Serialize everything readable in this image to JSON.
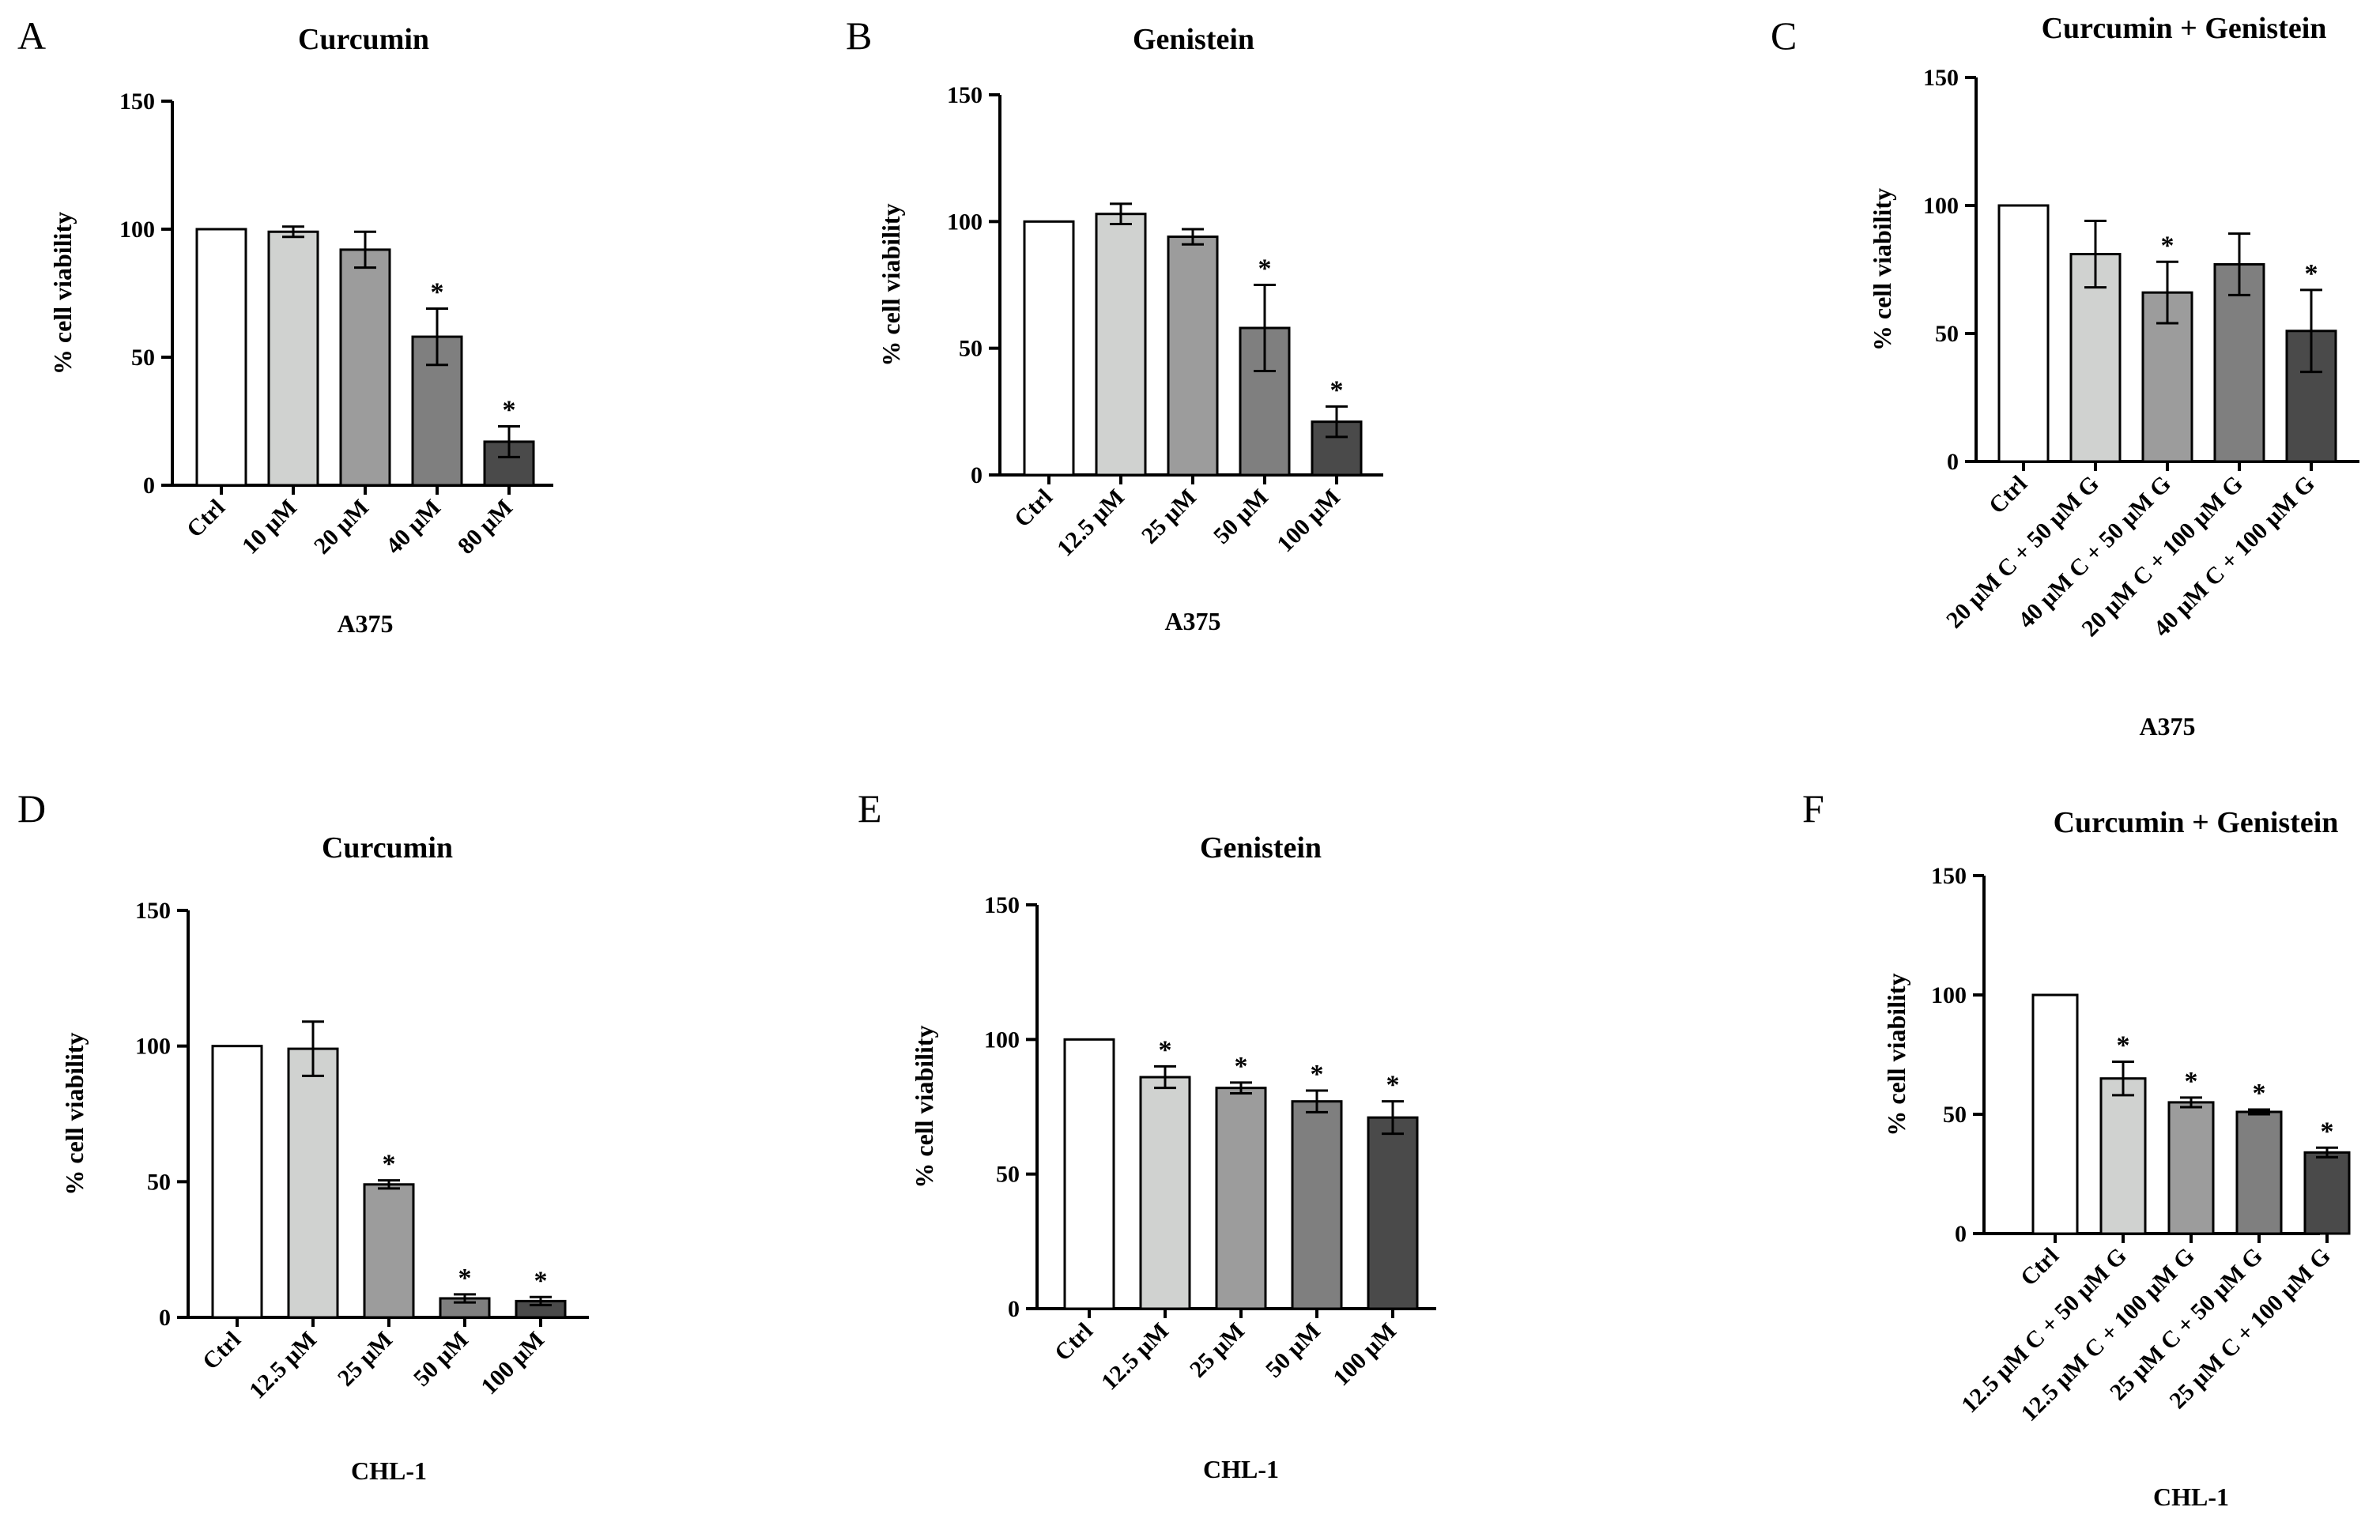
{
  "chart_data": [
    {
      "panel": "A",
      "type": "bar",
      "title": "Curcumin",
      "xlabel": "A375",
      "ylabel": "% cell viability",
      "ylim": [
        0,
        150
      ],
      "yticks": [
        0,
        50,
        100,
        150
      ],
      "categories": [
        "Ctrl",
        "10 µM",
        "20 µM",
        "40 µM",
        "80 µM"
      ],
      "values": [
        100,
        99,
        92,
        58,
        17
      ],
      "errors": [
        0,
        2,
        7,
        11,
        6
      ],
      "significant": [
        "",
        "",
        "",
        "*",
        "*"
      ]
    },
    {
      "panel": "B",
      "type": "bar",
      "title": "Genistein",
      "xlabel": "A375",
      "ylabel": "% cell viability",
      "ylim": [
        0,
        150
      ],
      "yticks": [
        0,
        50,
        100,
        150
      ],
      "categories": [
        "Ctrl",
        "12.5 µM",
        "25 µM",
        "50 µM",
        "100 µM"
      ],
      "values": [
        100,
        103,
        94,
        58,
        21
      ],
      "errors": [
        0,
        4,
        3,
        17,
        6
      ],
      "significant": [
        "",
        "",
        "",
        "*",
        "*"
      ]
    },
    {
      "panel": "C",
      "type": "bar",
      "title": "Curcumin + Genistein",
      "xlabel": "A375",
      "ylabel": "% cell viability",
      "ylim": [
        0,
        150
      ],
      "yticks": [
        0,
        50,
        100,
        150
      ],
      "categories": [
        "Ctrl",
        "20 µM C + 50 µM G",
        "40 µM C + 50 µM G",
        "20 µM C + 100 µM G",
        "40 µM C + 100 µM G"
      ],
      "values": [
        100,
        81,
        66,
        77,
        51
      ],
      "errors": [
        0,
        13,
        12,
        12,
        16
      ],
      "significant": [
        "",
        "",
        "*",
        "",
        "*"
      ]
    },
    {
      "panel": "D",
      "type": "bar",
      "title": "Curcumin",
      "xlabel": "CHL-1",
      "ylabel": "% cell viability",
      "ylim": [
        0,
        150
      ],
      "yticks": [
        0,
        50,
        100,
        150
      ],
      "categories": [
        "Ctrl",
        "12.5 µM",
        "25 µM",
        "50 µM",
        "100 µM"
      ],
      "values": [
        100,
        99,
        49,
        7,
        6
      ],
      "errors": [
        0,
        10,
        1.5,
        1.5,
        1.5
      ],
      "significant": [
        "",
        "",
        "*",
        "*",
        "*"
      ]
    },
    {
      "panel": "E",
      "type": "bar",
      "title": "Genistein",
      "xlabel": "CHL-1",
      "ylabel": "% cell viability",
      "ylim": [
        0,
        150
      ],
      "yticks": [
        0,
        50,
        100,
        150
      ],
      "categories": [
        "Ctrl",
        "12.5 µM",
        "25 µM",
        "50 µM",
        "100 µM"
      ],
      "values": [
        100,
        86,
        82,
        77,
        71
      ],
      "errors": [
        0,
        4,
        2,
        4,
        6
      ],
      "significant": [
        "",
        "*",
        "*",
        "*",
        "*"
      ]
    },
    {
      "panel": "F",
      "type": "bar",
      "title": "Curcumin + Genistein",
      "xlabel": "CHL-1",
      "ylabel": "% cell viability",
      "ylim": [
        0,
        150
      ],
      "yticks": [
        0,
        50,
        100,
        150
      ],
      "categories": [
        "Ctrl",
        "12.5 µM C + 50 µM G",
        "12.5 µM C + 100 µM G",
        "25 µM C + 50 µM G",
        "25 µM C + 100 µM G"
      ],
      "values": [
        100,
        65,
        55,
        51,
        34
      ],
      "errors": [
        0,
        7,
        2,
        1,
        2
      ],
      "significant": [
        "",
        "*",
        "*",
        "*",
        "*"
      ]
    }
  ],
  "bar_colors": [
    "#ffffff",
    "#d0d2d0",
    "#9c9c9c",
    "#7f7f7f",
    "#4a4a4a"
  ]
}
